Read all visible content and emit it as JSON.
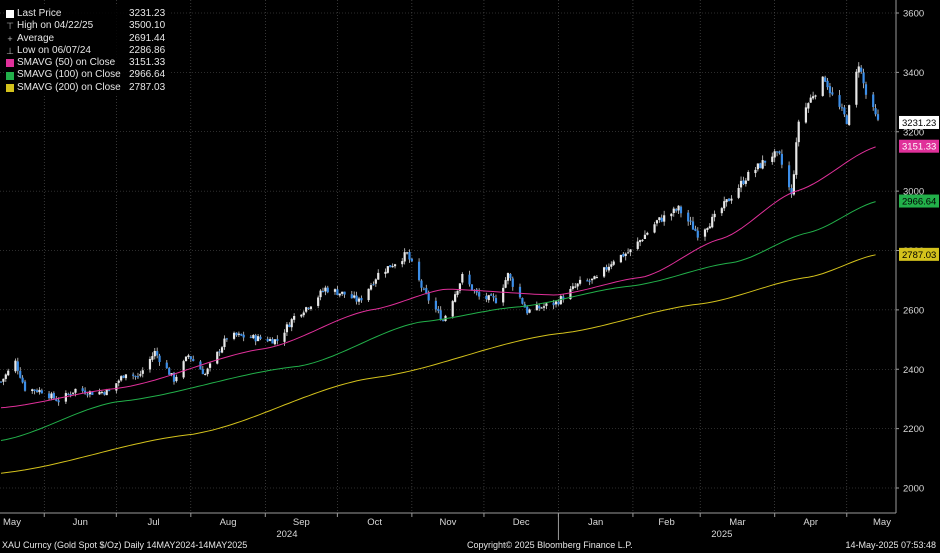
{
  "chart_data": {
    "type": "candlestick",
    "title": "XAU Curncy (Gold Spot  $/Oz)  Daily 14MAY2024-14MAY2025",
    "ylim": [
      1960,
      3640
    ],
    "y_ticks": [
      2000,
      2200,
      2400,
      2600,
      2800,
      3000,
      3200,
      3400,
      3600
    ],
    "x_months": [
      "May",
      "Jun",
      "Jul",
      "Aug",
      "Sep",
      "Oct",
      "Nov",
      "Dec",
      "Jan",
      "Feb",
      "Mar",
      "Apr",
      "May"
    ],
    "x_years": [
      "2024",
      "2025"
    ],
    "grid": true,
    "legend_placement": "top-left",
    "price_anchors": [
      [
        "2024-05-14",
        2358
      ],
      [
        "2024-05-20",
        2425
      ],
      [
        "2024-05-24",
        2335
      ],
      [
        "2024-05-31",
        2327
      ],
      [
        "2024-06-07",
        2294
      ],
      [
        "2024-06-14",
        2332
      ],
      [
        "2024-06-21",
        2321
      ],
      [
        "2024-06-28",
        2326
      ],
      [
        "2024-07-05",
        2390
      ],
      [
        "2024-07-10",
        2372
      ],
      [
        "2024-07-17",
        2458
      ],
      [
        "2024-07-25",
        2365
      ],
      [
        "2024-07-31",
        2447
      ],
      [
        "2024-08-07",
        2383
      ],
      [
        "2024-08-16",
        2507
      ],
      [
        "2024-08-20",
        2513
      ],
      [
        "2024-08-30",
        2503
      ],
      [
        "2024-09-06",
        2497
      ],
      [
        "2024-09-13",
        2577
      ],
      [
        "2024-09-20",
        2621
      ],
      [
        "2024-09-26",
        2672
      ],
      [
        "2024-10-04",
        2653
      ],
      [
        "2024-10-10",
        2629
      ],
      [
        "2024-10-18",
        2721
      ],
      [
        "2024-10-30",
        2788
      ],
      [
        "2024-11-06",
        2659
      ],
      [
        "2024-11-14",
        2565
      ],
      [
        "2024-11-22",
        2712
      ],
      [
        "2024-11-29",
        2643
      ],
      [
        "2024-12-06",
        2633
      ],
      [
        "2024-12-11",
        2718
      ],
      [
        "2024-12-19",
        2595
      ],
      [
        "2024-12-31",
        2624
      ],
      [
        "2025-01-10",
        2690
      ],
      [
        "2025-01-17",
        2703
      ],
      [
        "2025-01-24",
        2770
      ],
      [
        "2025-01-31",
        2798
      ],
      [
        "2025-02-11",
        2898
      ],
      [
        "2025-02-20",
        2940
      ],
      [
        "2025-02-28",
        2857
      ],
      [
        "2025-03-07",
        2910
      ],
      [
        "2025-03-14",
        2984
      ],
      [
        "2025-03-20",
        3046
      ],
      [
        "2025-03-31",
        3123
      ],
      [
        "2025-04-03",
        3115
      ],
      [
        "2025-04-08",
        2983
      ],
      [
        "2025-04-11",
        3237
      ],
      [
        "2025-04-17",
        3327
      ],
      [
        "2025-04-22",
        3381
      ],
      [
        "2025-04-25",
        3319
      ],
      [
        "2025-05-01",
        3239
      ],
      [
        "2025-05-06",
        3432
      ],
      [
        "2025-05-09",
        3325
      ],
      [
        "2025-05-14",
        3231
      ]
    ],
    "series": [
      {
        "name": "SMAVG (50)  on Close",
        "value": "3151.33",
        "color": "#e0309a",
        "points": [
          [
            "2024-05-14",
            2270
          ],
          [
            "2024-07-01",
            2335
          ],
          [
            "2024-09-01",
            2470
          ],
          [
            "2024-10-15",
            2600
          ],
          [
            "2024-11-15",
            2670
          ],
          [
            "2024-12-31",
            2650
          ],
          [
            "2025-02-05",
            2710
          ],
          [
            "2025-03-10",
            2840
          ],
          [
            "2025-04-10",
            3000
          ],
          [
            "2025-05-14",
            3151.33
          ]
        ]
      },
      {
        "name": "SMAVG (100)  on Close",
        "value": "2966.64",
        "color": "#22b04a",
        "points": [
          [
            "2024-05-14",
            2160
          ],
          [
            "2024-07-01",
            2290
          ],
          [
            "2024-09-15",
            2410
          ],
          [
            "2024-11-05",
            2560
          ],
          [
            "2024-12-15",
            2610
          ],
          [
            "2025-01-31",
            2680
          ],
          [
            "2025-03-15",
            2760
          ],
          [
            "2025-04-15",
            2860
          ],
          [
            "2025-05-14",
            2966.64
          ]
        ]
      },
      {
        "name": "SMAVG (200)  on Close",
        "value": "2787.03",
        "color": "#d4c21c",
        "points": [
          [
            "2024-05-14",
            2050
          ],
          [
            "2024-08-01",
            2180
          ],
          [
            "2024-10-15",
            2370
          ],
          [
            "2025-01-01",
            2520
          ],
          [
            "2025-03-01",
            2620
          ],
          [
            "2025-04-15",
            2710
          ],
          [
            "2025-05-14",
            2787.03
          ]
        ]
      }
    ],
    "last_price": "3231.23",
    "price_color": "#3c8ee8"
  },
  "legend": [
    {
      "kind": "box",
      "color": "#ffffff",
      "label": "Last Price",
      "value": "3231.23"
    },
    {
      "kind": "sym",
      "symbol": "⊤",
      "label": "High on 04/22/25",
      "value": "3500.10"
    },
    {
      "kind": "sym",
      "symbol": "+",
      "label": "Average",
      "value": "2691.44"
    },
    {
      "kind": "sym",
      "symbol": "⊥",
      "label": "Low on 06/07/24",
      "value": "2286.86"
    },
    {
      "kind": "box",
      "color": "#e0309a",
      "label": "SMAVG (50)  on Close",
      "value": "3151.33"
    },
    {
      "kind": "box",
      "color": "#22b04a",
      "label": "SMAVG (100)  on Close",
      "value": "2966.64"
    },
    {
      "kind": "box",
      "color": "#d4c21c",
      "label": "SMAVG (200)  on Close",
      "value": "2787.03"
    }
  ],
  "footer": {
    "left": "XAU Curncy (Gold Spot  $/Oz)  Daily 14MAY2024-14MAY2025",
    "center": "Copyright© 2025 Bloomberg Finance L.P.",
    "right": "14-May-2025 07:53:48"
  }
}
